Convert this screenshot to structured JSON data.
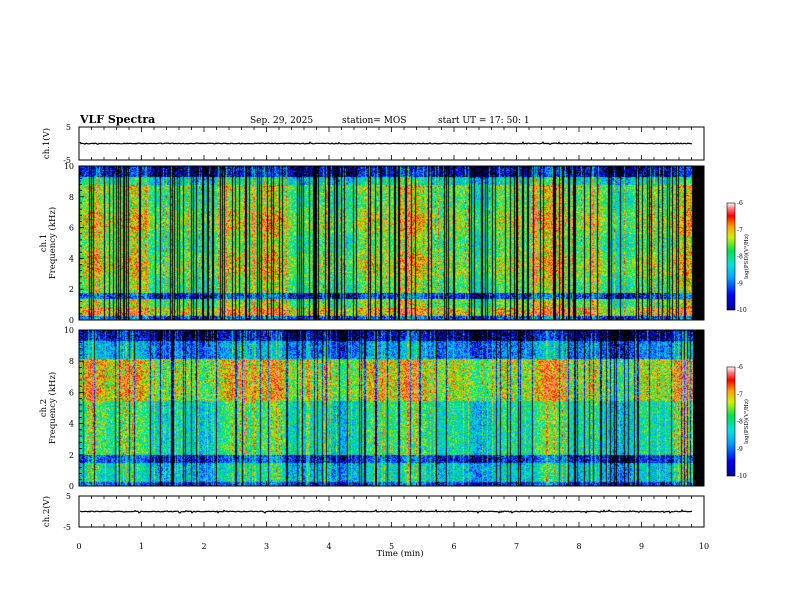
{
  "header": {
    "title": "VLF Spectra",
    "date": "Sep. 29, 2025",
    "station": "station= MOS",
    "start_ut": "start  UT  =   17: 50: 1"
  },
  "chart_data": [
    {
      "id": "ch1_waveform",
      "type": "line",
      "ylabel": "ch.1(V)",
      "ylim": [
        -5,
        5
      ],
      "yticks": [
        "5",
        "-5"
      ],
      "series": [
        {
          "name": "ch.1",
          "description_level": 0
        }
      ]
    },
    {
      "id": "ch1_spectrogram",
      "type": "heatmap",
      "ylabel": "ch.1\nFrequency  (kHz)",
      "ylabel_line1": "ch.1",
      "ylabel_line2": "Frequency  (kHz)",
      "ylim": [
        0,
        10
      ],
      "yticks": [
        "0",
        "2",
        "4",
        "6",
        "8",
        "10"
      ],
      "data_end_min": 9.82,
      "colorbar": {
        "label": "log(PSD)(V²/Hz)",
        "range": [
          -10,
          -6
        ],
        "ticks": [
          "-6",
          "-7",
          "-8",
          "-9",
          "-10"
        ]
      }
    },
    {
      "id": "ch2_spectrogram",
      "type": "heatmap",
      "ylabel": "ch.2\nFrequency  (kHz)",
      "ylabel_line1": "ch.2",
      "ylabel_line2": "Frequency  (kHz)",
      "ylim": [
        0,
        10
      ],
      "yticks": [
        "0",
        "2",
        "4",
        "6",
        "8",
        "10"
      ],
      "data_end_min": 9.82,
      "colorbar": {
        "label": "log(PSD)(V²/Hz)",
        "range": [
          -10,
          -6
        ],
        "ticks": [
          "-6",
          "-7",
          "-8",
          "-9",
          "-10"
        ]
      }
    },
    {
      "id": "ch2_waveform",
      "type": "line",
      "ylabel": "ch.2(V)",
      "ylim": [
        -5,
        5
      ],
      "yticks": [
        "5",
        "-5"
      ],
      "series": [
        {
          "name": "ch.2",
          "description_level": 0
        }
      ]
    }
  ],
  "x_axis": {
    "label": "Time  (min)",
    "xlim": [
      0,
      10
    ],
    "ticks": [
      "0",
      "1",
      "2",
      "3",
      "4",
      "5",
      "6",
      "7",
      "8",
      "9",
      "10"
    ]
  }
}
